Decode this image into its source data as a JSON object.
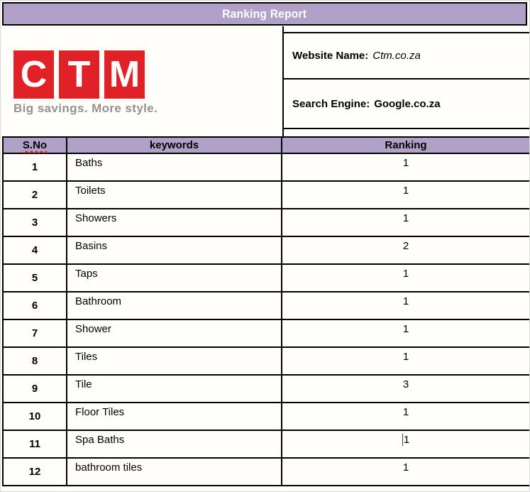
{
  "title_bar": {
    "title": "Ranking Report"
  },
  "logo": {
    "letters": [
      "C",
      "T",
      "M"
    ],
    "tagline": "Big savings. More style."
  },
  "site_info": {
    "website": {
      "label": "Website Name:",
      "value": "Ctm.co.za"
    },
    "search_engine": {
      "label": "Search Engine:",
      "value": "Google.co.za"
    }
  },
  "table": {
    "columns": [
      "S.No",
      "keywords",
      "Ranking"
    ],
    "rows": [
      {
        "sno": "1",
        "keyword": "Baths",
        "ranking": "1"
      },
      {
        "sno": "2",
        "keyword": "Toilets",
        "ranking": "1"
      },
      {
        "sno": "3",
        "keyword": "Showers",
        "ranking": "1"
      },
      {
        "sno": "4",
        "keyword": "Basins",
        "ranking": "2"
      },
      {
        "sno": "5",
        "keyword": "Taps",
        "ranking": "1"
      },
      {
        "sno": "6",
        "keyword": "Bathroom",
        "ranking": "1"
      },
      {
        "sno": "7",
        "keyword": "Shower",
        "ranking": "1"
      },
      {
        "sno": "8",
        "keyword": "Tiles",
        "ranking": "1"
      },
      {
        "sno": "9",
        "keyword": "Tile",
        "ranking": "3"
      },
      {
        "sno": "10",
        "keyword": "Floor Tiles",
        "ranking": "1"
      },
      {
        "sno": "11",
        "keyword": "Spa Baths",
        "ranking": "1",
        "has_cursor": true
      },
      {
        "sno": "12",
        "keyword": "bathroom tiles",
        "ranking": "1"
      }
    ]
  },
  "colors": {
    "header_purple": "#B1A0C7",
    "logo_red": "#E02127",
    "tagline_gray": "#929292",
    "squiggle_red": "#C00000",
    "border_black": "#000000"
  }
}
